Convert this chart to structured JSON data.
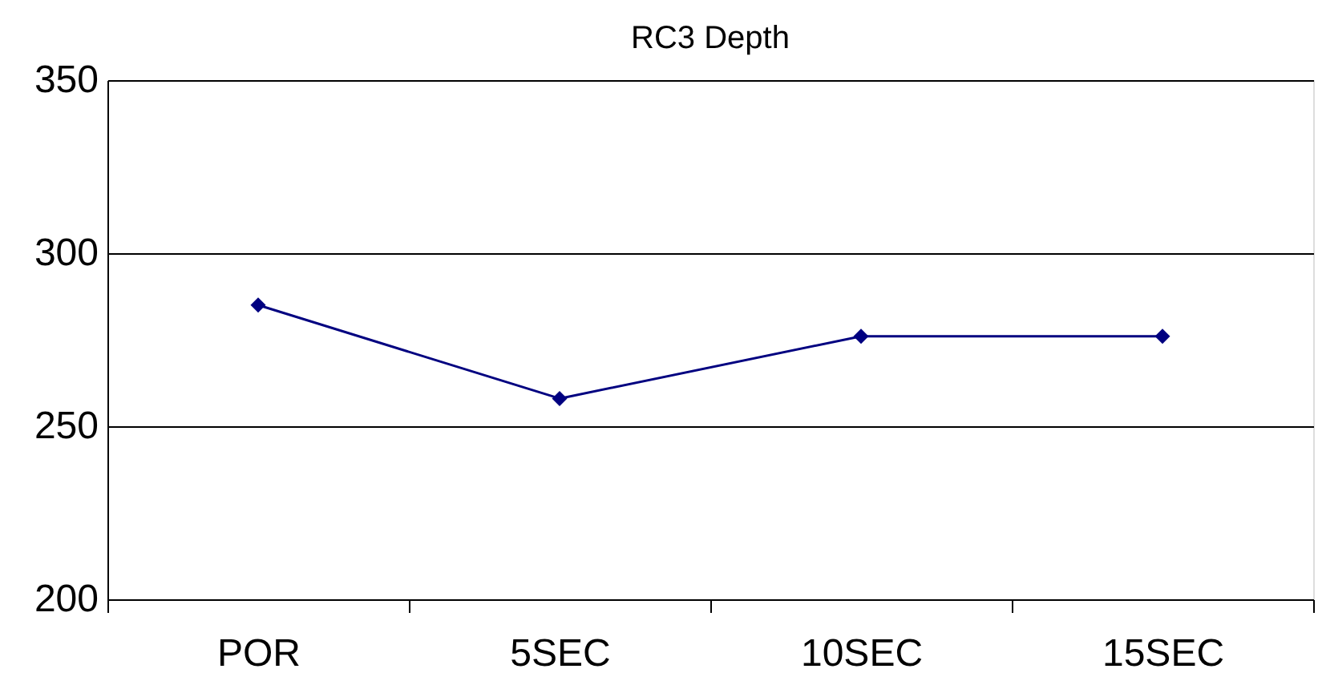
{
  "chart_data": {
    "type": "line",
    "title": "RC3 Depth",
    "categories": [
      "POR",
      "5SEC",
      "10SEC",
      "15SEC"
    ],
    "series": [
      {
        "color": "#000080",
        "values": [
          285,
          258,
          276,
          276
        ]
      }
    ],
    "ylim": [
      200,
      350
    ],
    "yticks": [
      200,
      250,
      300,
      350
    ],
    "grid": "y",
    "marker": "diamond",
    "line_style": "solid"
  }
}
